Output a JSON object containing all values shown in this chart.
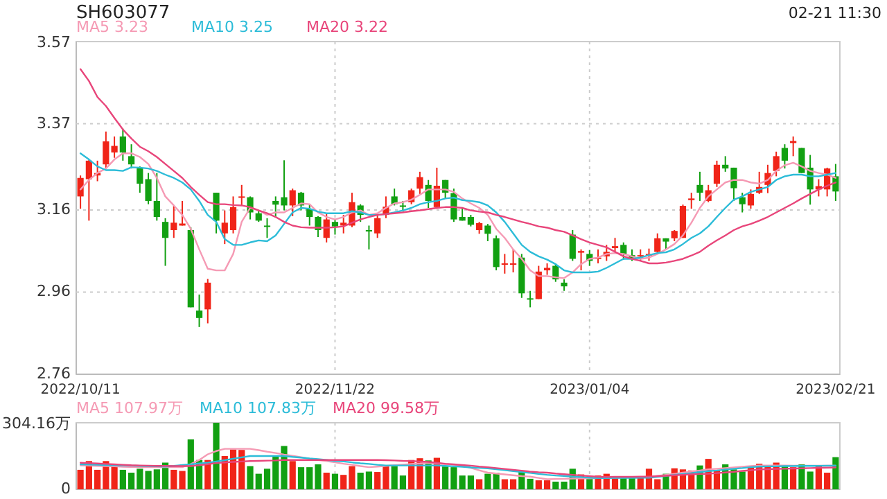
{
  "chart_data": [
    {
      "type": "candlestick",
      "title": "SH603077",
      "annotations": [
        "02-21 11:30"
      ],
      "categories": [
        "2022/10/11",
        null,
        null,
        null,
        null,
        null,
        null,
        null,
        null,
        null,
        null,
        null,
        null,
        null,
        null,
        null,
        null,
        null,
        null,
        null,
        null,
        null,
        null,
        null,
        null,
        null,
        null,
        null,
        null,
        null,
        "2022/11/22",
        null,
        null,
        null,
        null,
        null,
        null,
        null,
        null,
        null,
        null,
        null,
        null,
        null,
        null,
        null,
        null,
        null,
        null,
        null,
        null,
        null,
        null,
        null,
        null,
        null,
        null,
        null,
        null,
        null,
        "2023/01/04",
        null,
        null,
        null,
        null,
        null,
        null,
        null,
        null,
        null,
        null,
        null,
        null,
        null,
        null,
        null,
        null,
        null,
        null,
        null,
        null,
        null,
        null,
        null,
        null,
        null,
        null,
        null,
        null,
        "2023/02/21"
      ],
      "ohlc": [
        [
          3.193,
          3.244,
          3.163,
          3.238
        ],
        [
          3.235,
          3.282,
          3.134,
          3.28
        ],
        [
          3.244,
          3.28,
          3.23,
          3.25
        ],
        [
          3.271,
          3.351,
          3.261,
          3.327
        ],
        [
          3.3,
          3.339,
          3.287,
          3.316
        ],
        [
          3.339,
          3.358,
          3.28,
          3.3
        ],
        [
          3.291,
          3.32,
          3.261,
          3.271
        ],
        [
          3.262,
          3.266,
          3.202,
          3.224
        ],
        [
          3.235,
          3.25,
          3.174,
          3.182
        ],
        [
          3.182,
          3.25,
          3.134,
          3.143
        ],
        [
          3.131,
          3.14,
          3.024,
          3.092
        ],
        [
          3.111,
          3.171,
          3.092,
          3.129
        ],
        [
          3.122,
          3.182,
          3.122,
          3.127
        ],
        [
          3.111,
          3.118,
          2.923,
          2.923
        ],
        [
          2.915,
          2.954,
          2.875,
          2.897
        ],
        [
          2.918,
          2.992,
          2.884,
          2.983
        ],
        [
          3.202,
          3.202,
          3.103,
          3.134
        ],
        [
          3.103,
          3.159,
          3.077,
          3.129
        ],
        [
          3.111,
          3.193,
          3.103,
          3.167
        ],
        [
          3.19,
          3.221,
          3.171,
          3.193
        ],
        [
          3.191,
          3.193,
          3.137,
          3.154
        ],
        [
          3.152,
          3.159,
          3.131,
          3.134
        ],
        [
          3.122,
          3.14,
          3.092,
          3.12
        ],
        [
          3.182,
          3.193,
          3.143,
          3.173
        ],
        [
          3.191,
          3.281,
          3.159,
          3.171
        ],
        [
          3.171,
          3.212,
          3.145,
          3.208
        ],
        [
          3.202,
          3.204,
          3.159,
          3.171
        ],
        [
          3.162,
          3.174,
          3.122,
          3.143
        ],
        [
          3.143,
          3.145,
          3.094,
          3.111
        ],
        [
          3.092,
          3.152,
          3.081,
          3.137
        ],
        [
          3.131,
          3.137,
          3.1,
          3.12
        ],
        [
          3.122,
          3.148,
          3.103,
          3.129
        ],
        [
          3.122,
          3.202,
          3.118,
          3.179
        ],
        [
          3.171,
          3.174,
          3.131,
          3.148
        ],
        [
          3.111,
          3.122,
          3.064,
          3.109
        ],
        [
          3.103,
          3.152,
          3.092,
          3.14
        ],
        [
          3.148,
          3.193,
          3.14,
          3.168
        ],
        [
          3.193,
          3.212,
          3.171,
          3.174
        ],
        [
          3.171,
          3.182,
          3.156,
          3.169
        ],
        [
          3.179,
          3.212,
          3.174,
          3.208
        ],
        [
          3.212,
          3.253,
          3.199,
          3.24
        ],
        [
          3.221,
          3.233,
          3.165,
          3.182
        ],
        [
          3.167,
          3.263,
          3.163,
          3.219
        ],
        [
          3.233,
          3.233,
          3.188,
          3.202
        ],
        [
          3.201,
          3.212,
          3.131,
          3.137
        ],
        [
          3.143,
          3.165,
          3.134,
          3.134
        ],
        [
          3.143,
          3.148,
          3.12,
          3.124
        ],
        [
          3.111,
          3.131,
          3.102,
          3.128
        ],
        [
          3.122,
          3.126,
          3.084,
          3.102
        ],
        [
          3.091,
          3.098,
          3.013,
          3.021
        ],
        [
          3.028,
          3.053,
          3.005,
          3.03
        ],
        [
          3.028,
          3.064,
          3.008,
          3.03
        ],
        [
          3.044,
          3.053,
          2.946,
          2.957
        ],
        [
          2.945,
          2.963,
          2.923,
          2.942
        ],
        [
          2.943,
          3.024,
          2.943,
          3.01
        ],
        [
          3.013,
          3.03,
          3.002,
          3.019
        ],
        [
          3.024,
          3.03,
          2.985,
          2.991
        ],
        [
          2.983,
          2.991,
          2.963,
          2.974
        ],
        [
          3.1,
          3.111,
          3.036,
          3.041
        ],
        [
          3.056,
          3.064,
          3.013,
          3.06
        ],
        [
          3.053,
          3.062,
          3.024,
          3.036
        ],
        [
          3.041,
          3.064,
          3.03,
          3.044
        ],
        [
          3.047,
          3.075,
          3.036,
          3.058
        ],
        [
          3.067,
          3.092,
          3.058,
          3.072
        ],
        [
          3.075,
          3.081,
          3.039,
          3.053
        ],
        [
          3.05,
          3.064,
          3.036,
          3.041
        ],
        [
          3.047,
          3.064,
          3.036,
          3.05
        ],
        [
          3.049,
          3.066,
          3.036,
          3.053
        ],
        [
          3.058,
          3.103,
          3.055,
          3.091
        ],
        [
          3.091,
          3.091,
          3.064,
          3.083
        ],
        [
          3.091,
          3.111,
          3.084,
          3.109
        ],
        [
          3.092,
          3.173,
          3.092,
          3.17
        ],
        [
          3.184,
          3.202,
          3.163,
          3.188
        ],
        [
          3.221,
          3.253,
          3.182,
          3.202
        ],
        [
          3.182,
          3.221,
          3.179,
          3.208
        ],
        [
          3.224,
          3.28,
          3.216,
          3.27
        ],
        [
          3.27,
          3.291,
          3.253,
          3.261
        ],
        [
          3.263,
          3.263,
          3.182,
          3.213
        ],
        [
          3.191,
          3.202,
          3.154,
          3.174
        ],
        [
          3.171,
          3.21,
          3.163,
          3.199
        ],
        [
          3.202,
          3.253,
          3.199,
          3.216
        ],
        [
          3.221,
          3.27,
          3.201,
          3.25
        ],
        [
          3.255,
          3.302,
          3.242,
          3.291
        ],
        [
          3.311,
          3.32,
          3.261,
          3.28
        ],
        [
          3.323,
          3.339,
          3.291,
          3.328
        ],
        [
          3.311,
          3.311,
          3.25,
          3.25
        ],
        [
          3.263,
          3.294,
          3.173,
          3.21
        ],
        [
          3.21,
          3.235,
          3.193,
          3.218
        ],
        [
          3.21,
          3.263,
          3.193,
          3.261
        ],
        [
          3.242,
          3.272,
          3.182,
          3.205
        ]
      ],
      "colors": [
        "#f02418",
        "#f02418",
        "#f02418",
        "#f02418",
        "#f02418",
        "#12a012",
        "#12a012",
        "#12a012",
        "#12a012",
        "#12a012",
        "#12a012",
        "#f02418",
        "#f02418",
        "#12a012",
        "#12a012",
        "#f02418",
        "#12a012",
        "#f02418",
        "#f02418",
        "#f02418",
        "#12a012",
        "#12a012",
        "#12a012",
        "#12a012",
        "#12a012",
        "#f02418",
        "#12a012",
        "#12a012",
        "#12a012",
        "#f02418",
        "#12a012",
        "#f02418",
        "#f02418",
        "#12a012",
        "#12a012",
        "#f02418",
        "#f02418",
        "#12a012",
        "#12a012",
        "#f02418",
        "#f02418",
        "#12a012",
        "#f02418",
        "#12a012",
        "#12a012",
        "#12a012",
        "#12a012",
        "#f02418",
        "#12a012",
        "#12a012",
        "#f02418",
        "#f02418",
        "#12a012",
        "#12a012",
        "#f02418",
        "#f02418",
        "#12a012",
        "#12a012",
        "#12a012",
        "#f02418",
        "#12a012",
        "#f02418",
        "#f02418",
        "#f02418",
        "#12a012",
        "#12a012",
        "#f02418",
        "#f02418",
        "#f02418",
        "#12a012",
        "#f02418",
        "#f02418",
        "#f02418",
        "#12a012",
        "#f02418",
        "#f02418",
        "#12a012",
        "#12a012",
        "#12a012",
        "#f02418",
        "#f02418",
        "#f02418",
        "#f02418",
        "#12a012",
        "#f02418",
        "#12a012",
        "#12a012",
        "#f02418",
        "#f02418",
        "#12a012"
      ],
      "series": [
        {
          "name": "MA5 3.23",
          "type": "line",
          "color": "#f59ab4",
          "values": [
            3.21,
            3.233,
            3.25,
            3.261,
            3.283,
            3.298,
            3.298,
            3.289,
            3.272,
            3.238,
            3.193,
            3.171,
            3.148,
            3.114,
            3.064,
            3.017,
            3.013,
            3.013,
            3.053,
            3.131,
            3.165,
            3.159,
            3.148,
            3.154,
            3.154,
            3.165,
            3.176,
            3.174,
            3.154,
            3.143,
            3.137,
            3.143,
            3.154,
            3.159,
            3.148,
            3.152,
            3.165,
            3.176,
            3.179,
            3.185,
            3.197,
            3.21,
            3.21,
            3.21,
            3.204,
            3.188,
            3.176,
            3.165,
            3.148,
            3.114,
            3.092,
            3.064,
            3.041,
            3.013,
            2.999,
            2.999,
            2.996,
            2.994,
            3.008,
            3.028,
            3.041,
            3.044,
            3.053,
            3.055,
            3.053,
            3.047,
            3.041,
            3.044,
            3.053,
            3.064,
            3.077,
            3.098,
            3.129,
            3.165,
            3.193,
            3.21,
            3.227,
            3.233,
            3.233,
            3.227,
            3.224,
            3.233,
            3.255,
            3.269,
            3.275,
            3.266,
            3.255,
            3.25,
            3.246,
            3.238
          ]
        },
        {
          "name": "MA10 3.25",
          "type": "line",
          "color": "#2cbcd8",
          "values": [
            3.298,
            3.283,
            3.266,
            3.257,
            3.257,
            3.255,
            3.264,
            3.263,
            3.261,
            3.255,
            3.246,
            3.238,
            3.227,
            3.21,
            3.182,
            3.148,
            3.131,
            3.089,
            3.075,
            3.075,
            3.081,
            3.086,
            3.084,
            3.098,
            3.126,
            3.154,
            3.165,
            3.163,
            3.156,
            3.152,
            3.152,
            3.152,
            3.157,
            3.154,
            3.148,
            3.148,
            3.15,
            3.154,
            3.159,
            3.165,
            3.174,
            3.179,
            3.182,
            3.188,
            3.19,
            3.184,
            3.182,
            3.179,
            3.171,
            3.154,
            3.131,
            3.103,
            3.075,
            3.058,
            3.047,
            3.039,
            3.028,
            3.013,
            3.008,
            3.008,
            3.008,
            3.01,
            3.019,
            3.03,
            3.041,
            3.041,
            3.044,
            3.05,
            3.055,
            3.057,
            3.064,
            3.077,
            3.092,
            3.103,
            3.12,
            3.143,
            3.165,
            3.185,
            3.193,
            3.204,
            3.21,
            3.216,
            3.233,
            3.242,
            3.246,
            3.246,
            3.242,
            3.242,
            3.246,
            3.25
          ]
        },
        {
          "name": "MA20 3.22",
          "type": "line",
          "color": "#e8457a",
          "values": [
            3.503,
            3.474,
            3.435,
            3.413,
            3.384,
            3.356,
            3.334,
            3.314,
            3.303,
            3.289,
            3.272,
            3.255,
            3.238,
            3.216,
            3.197,
            3.179,
            3.174,
            3.174,
            3.172,
            3.171,
            3.167,
            3.159,
            3.152,
            3.143,
            3.131,
            3.122,
            3.118,
            3.117,
            3.117,
            3.117,
            3.118,
            3.12,
            3.129,
            3.137,
            3.143,
            3.148,
            3.15,
            3.152,
            3.154,
            3.157,
            3.159,
            3.162,
            3.165,
            3.167,
            3.167,
            3.165,
            3.159,
            3.156,
            3.154,
            3.148,
            3.143,
            3.137,
            3.131,
            3.126,
            3.12,
            3.117,
            3.111,
            3.107,
            3.098,
            3.089,
            3.081,
            3.075,
            3.069,
            3.058,
            3.047,
            3.041,
            3.036,
            3.03,
            3.03,
            3.032,
            3.036,
            3.041,
            3.049,
            3.058,
            3.073,
            3.086,
            3.098,
            3.111,
            3.12,
            3.126,
            3.134,
            3.143,
            3.154,
            3.165,
            3.176,
            3.188,
            3.199,
            3.21,
            3.219,
            3.227
          ]
        }
      ],
      "ylim": [
        2.76,
        3.57
      ],
      "yticks": [
        2.76,
        2.96,
        3.16,
        3.37,
        3.57
      ],
      "grid": true,
      "legend": "top left"
    },
    {
      "type": "bar",
      "categories": [
        "2022/10/11",
        null,
        null,
        null,
        null,
        null,
        null,
        null,
        null,
        null,
        null,
        null,
        null,
        null,
        null,
        null,
        null,
        null,
        null,
        null,
        null,
        null,
        null,
        null,
        null,
        null,
        null,
        null,
        null,
        null,
        "2022/11/22",
        null,
        null,
        null,
        null,
        null,
        null,
        null,
        null,
        null,
        null,
        null,
        null,
        null,
        null,
        null,
        null,
        null,
        null,
        null,
        null,
        null,
        null,
        null,
        null,
        null,
        null,
        null,
        null,
        null,
        "2023/01/04",
        null,
        null,
        null,
        null,
        null,
        null,
        null,
        null,
        null,
        null,
        null,
        null,
        null,
        null,
        null,
        null,
        null,
        null,
        null,
        null,
        null,
        null,
        null,
        null,
        null,
        null,
        null,
        null,
        "2023/02/21"
      ],
      "series": [
        {
          "type": "bar",
          "values": [
            89,
            129,
            89,
            129,
            106,
            89,
            76,
            94,
            84,
            91,
            122,
            89,
            84,
            228,
            134,
            134,
            304,
            152,
            182,
            180,
            106,
            71,
            94,
            152,
            198,
            129,
            101,
            101,
            114,
            76,
            71,
            66,
            106,
            76,
            81,
            79,
            106,
            106,
            63,
            134,
            142,
            132,
            144,
            104,
            101,
            63,
            63,
            46,
            71,
            76,
            46,
            46,
            81,
            48,
            41,
            41,
            35,
            35,
            94,
            68,
            56,
            63,
            71,
            56,
            56,
            56,
            53,
            94,
            46,
            71,
            96,
            91,
            86,
            109,
            139,
            89,
            114,
            91,
            81,
            106,
            117,
            106,
            122,
            104,
            101,
            114,
            81,
            106,
            76,
            147
          ],
          "colors": [
            "#f02418",
            "#f02418",
            "#f02418",
            "#f02418",
            "#f02418",
            "#12a012",
            "#12a012",
            "#12a012",
            "#12a012",
            "#12a012",
            "#12a012",
            "#f02418",
            "#f02418",
            "#12a012",
            "#12a012",
            "#f02418",
            "#12a012",
            "#f02418",
            "#f02418",
            "#f02418",
            "#12a012",
            "#12a012",
            "#12a012",
            "#12a012",
            "#12a012",
            "#f02418",
            "#12a012",
            "#12a012",
            "#12a012",
            "#f02418",
            "#12a012",
            "#f02418",
            "#f02418",
            "#12a012",
            "#12a012",
            "#f02418",
            "#f02418",
            "#12a012",
            "#12a012",
            "#f02418",
            "#f02418",
            "#12a012",
            "#f02418",
            "#12a012",
            "#12a012",
            "#12a012",
            "#12a012",
            "#f02418",
            "#12a012",
            "#12a012",
            "#f02418",
            "#f02418",
            "#12a012",
            "#12a012",
            "#f02418",
            "#f02418",
            "#12a012",
            "#12a012",
            "#12a012",
            "#f02418",
            "#12a012",
            "#f02418",
            "#f02418",
            "#f02418",
            "#12a012",
            "#12a012",
            "#f02418",
            "#f02418",
            "#f02418",
            "#12a012",
            "#f02418",
            "#f02418",
            "#f02418",
            "#12a012",
            "#f02418",
            "#f02418",
            "#12a012",
            "#12a012",
            "#12a012",
            "#f02418",
            "#f02418",
            "#f02418",
            "#f02418",
            "#12a012",
            "#f02418",
            "#12a012",
            "#12a012",
            "#f02418",
            "#f02418",
            "#12a012"
          ]
        },
        {
          "name": "MA5 107.97万",
          "type": "line",
          "color": "#f59ab4",
          "values": [
            109,
            108,
            107,
            106,
            105,
            103,
            102,
            101,
            101,
            101,
            101,
            101,
            101,
            115,
            134,
            160,
            175,
            185,
            185,
            185,
            185,
            179,
            172,
            166,
            159,
            153,
            147,
            140,
            134,
            129,
            123,
            117,
            112,
            106,
            101,
            104,
            107,
            110,
            113,
            116,
            118,
            121,
            118,
            115,
            112,
            109,
            98,
            87,
            76,
            72,
            68,
            64,
            60,
            58,
            52,
            46,
            47,
            48,
            49,
            50,
            50,
            51,
            52,
            53,
            54,
            55,
            55,
            56,
            61,
            66,
            71,
            76,
            81,
            86,
            91,
            94,
            97,
            100,
            103,
            106,
            109,
            109,
            109,
            109,
            108,
            108,
            108,
            108,
            108,
            108
          ]
        },
        {
          "name": "MA10 107.83万",
          "type": "line",
          "color": "#2cbcd8",
          "values": [
            114,
            113,
            112,
            111,
            110,
            109,
            108,
            107,
            106,
            105,
            104,
            107,
            111,
            114,
            118,
            121,
            127,
            133,
            140,
            146,
            152,
            152,
            152,
            152,
            152,
            148,
            145,
            141,
            138,
            134,
            130,
            127,
            123,
            119,
            116,
            112,
            109,
            109,
            109,
            109,
            109,
            109,
            109,
            107,
            105,
            103,
            100,
            98,
            96,
            92,
            88,
            83,
            79,
            75,
            70,
            66,
            63,
            61,
            58,
            56,
            53,
            51,
            51,
            52,
            52,
            52,
            53,
            53,
            57,
            61,
            66,
            70,
            74,
            79,
            83,
            86,
            90,
            94,
            97,
            101,
            104,
            105,
            105,
            106,
            106,
            107,
            107,
            107,
            108,
            108
          ]
        },
        {
          "name": "MA20 99.58万",
          "type": "line",
          "color": "#e8457a",
          "values": [
            121,
            120,
            118,
            116,
            114,
            112,
            110,
            109,
            108,
            107,
            107,
            106,
            106,
            106,
            110,
            115,
            120,
            123,
            125,
            127,
            129,
            130,
            131,
            132,
            134,
            134,
            134,
            134,
            134,
            134,
            134,
            134,
            134,
            134,
            134,
            134,
            133,
            132,
            130,
            129,
            127,
            125,
            121,
            117,
            114,
            111,
            108,
            104,
            101,
            97,
            93,
            89,
            85,
            81,
            78,
            76,
            72,
            69,
            66,
            63,
            60,
            57,
            56,
            57,
            57,
            57,
            58,
            58,
            60,
            62,
            64,
            66,
            68,
            70,
            71,
            74,
            77,
            80,
            84,
            87,
            91,
            92,
            93,
            94,
            95,
            96,
            97,
            98,
            99,
            100
          ]
        }
      ],
      "ylim": [
        0,
        304.16
      ],
      "yticks": [
        0,
        {
          "value": 304.16,
          "label": "304.16万"
        }
      ],
      "grid": true,
      "legend": "top left",
      "tick_labels": "y"
    }
  ]
}
